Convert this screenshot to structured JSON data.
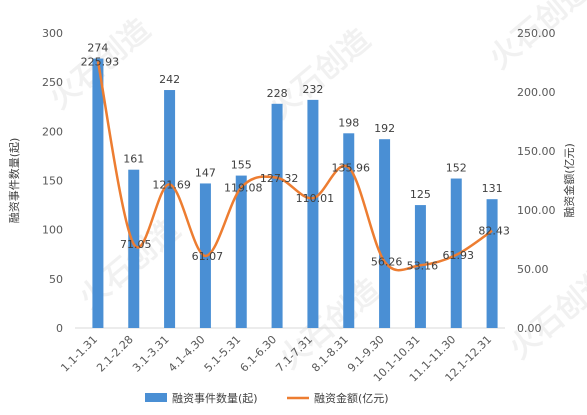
{
  "chart_data": {
    "type": "bar+line",
    "categories": [
      "1.1-1.31",
      "2.1-2.28",
      "3.1-3.31",
      "4.1-4.30",
      "5.1-5.31",
      "6.1-6.30",
      "7.1-7.31",
      "8.1-8.31",
      "9.1-9.30",
      "10.1-10.31",
      "11.1-11.30",
      "12.1-12.31"
    ],
    "series": [
      {
        "name": "融资事件数量(起)",
        "type": "bar",
        "axis": "left",
        "color": "#4A8FD4",
        "values": [
          274,
          161,
          242,
          147,
          155,
          228,
          232,
          198,
          192,
          125,
          152,
          131
        ],
        "labels": [
          "274",
          "161",
          "242",
          "147",
          "155",
          "228",
          "232",
          "198",
          "192",
          "125",
          "152",
          "131"
        ]
      },
      {
        "name": "融资金额(亿元)",
        "type": "line",
        "axis": "right",
        "color": "#ED7D31",
        "values": [
          225.93,
          71.05,
          121.69,
          61.07,
          119.08,
          127.32,
          110.01,
          135.96,
          56.26,
          53.16,
          61.93,
          82.43
        ],
        "labels": [
          "225.93",
          "71.05",
          "121.69",
          "61.07",
          "119.08",
          "127.32",
          "110.01",
          "135.96",
          "56.26",
          "53.16",
          "61.93",
          "82.43"
        ]
      }
    ],
    "ylabel_left": "融资事件数量(起)",
    "ylabel_right": "融资金额(亿元)",
    "ylim_left": [
      0,
      300
    ],
    "ylim_right": [
      0,
      250
    ],
    "yticks_left": [
      "0",
      "50",
      "100",
      "150",
      "200",
      "250",
      "300"
    ],
    "yticks_right": [
      "0.00",
      "50.00",
      "100.00",
      "150.00",
      "200.00",
      "250.00"
    ],
    "legend_position": "bottom",
    "grid": false
  },
  "watermark": "火石创造"
}
